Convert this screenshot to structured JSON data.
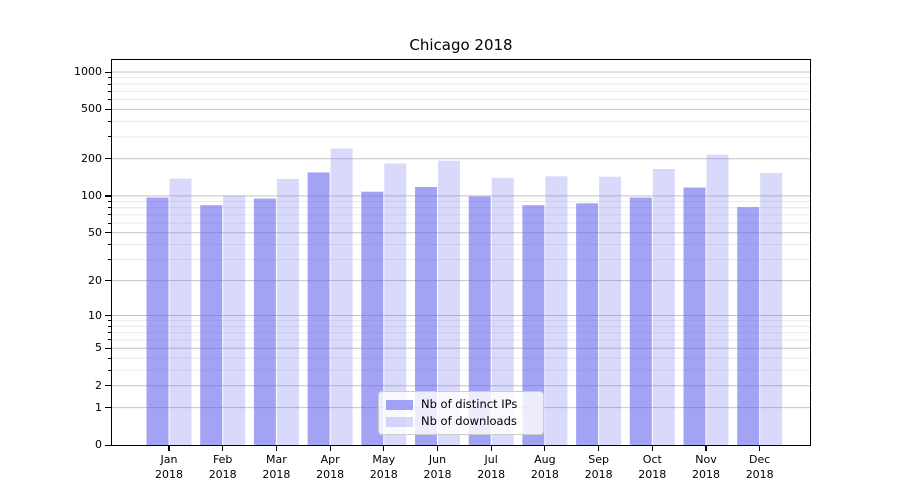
{
  "chart_data": {
    "type": "bar",
    "title": "Chicago 2018",
    "categories": [
      "Jan",
      "Feb",
      "Mar",
      "Apr",
      "May",
      "Jun",
      "Jul",
      "Aug",
      "Sep",
      "Oct",
      "Nov",
      "Dec"
    ],
    "x_year_label": "2018",
    "series": [
      {
        "name": "Nb of distinct IPs",
        "fill": "rgba(102,102,238,0.6)",
        "values": [
          97,
          84,
          95,
          155,
          108,
          118,
          99,
          84,
          87,
          97,
          117,
          81
        ]
      },
      {
        "name": "Nb of downloads",
        "fill": "rgba(102,102,238,0.25)",
        "values": [
          138,
          100,
          137,
          242,
          183,
          193,
          140,
          144,
          143,
          165,
          216,
          153
        ]
      }
    ],
    "y_axis": {
      "scale": "log1p",
      "ticks": [
        0,
        1,
        2,
        5,
        10,
        20,
        50,
        100,
        200,
        500,
        1000
      ],
      "minor_ticks": [
        3,
        4,
        6,
        7,
        8,
        9,
        30,
        40,
        60,
        70,
        80,
        90,
        300,
        400,
        600,
        700,
        800,
        900
      ],
      "ylim": [
        0,
        1250
      ]
    },
    "xlabel": "",
    "ylabel": "",
    "grid": {
      "enabled": true,
      "major_color": "#c4c4c4",
      "minor_color": "#eaeaea"
    },
    "legend": {
      "position": "lower center",
      "background": "rgba(255,255,255,0.8)",
      "border_color": "#cccccc"
    },
    "colors": {
      "bar_base": "#6666ee",
      "spine": "#000000",
      "background": "#ffffff"
    }
  }
}
